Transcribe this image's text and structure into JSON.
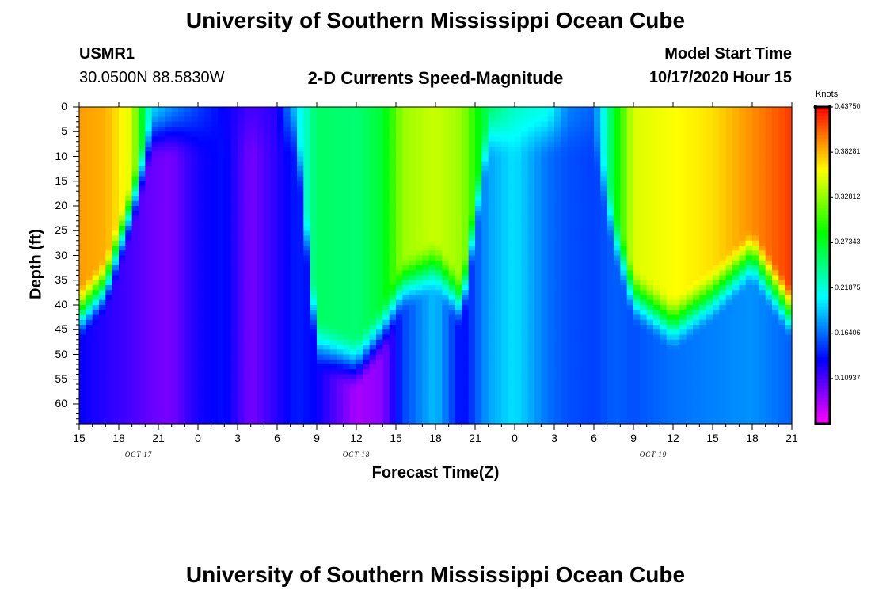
{
  "page": {
    "title": "University of Southern Mississippi Ocean Cube",
    "footer_title": "University of Southern Mississippi Ocean Cube"
  },
  "header": {
    "station_id": "USMR1",
    "station_coords": "30.0500N 88.5830W",
    "chart_title": "2-D Currents Speed-Magnitude",
    "model_start_label": "Model Start Time",
    "model_start_value": "10/17/2020 Hour 15"
  },
  "chart_data": {
    "type": "heatmap",
    "title": "2-D Currents Speed-Magnitude",
    "xlabel": "Forecast Time(Z)",
    "ylabel": "Depth (ft)",
    "y_range": [
      0,
      64
    ],
    "y_ticks": [
      0,
      5,
      10,
      15,
      20,
      25,
      30,
      35,
      40,
      45,
      50,
      55,
      60
    ],
    "x_range_hours": [
      0,
      54
    ],
    "x_tick_labels": [
      "15",
      "18",
      "21",
      "0",
      "3",
      "6",
      "9",
      "12",
      "15",
      "18",
      "21",
      "0",
      "3",
      "6",
      "9",
      "12",
      "15",
      "18",
      "21"
    ],
    "date_labels": [
      {
        "text": "OCT 17",
        "hour": 4.5
      },
      {
        "text": "OCT 18",
        "hour": 21
      },
      {
        "text": "OCT 19",
        "hour": 43.5
      }
    ],
    "colorbar": {
      "label": "Knots",
      "min": 0.0547,
      "max": 0.4375,
      "tick_labels": [
        "0.43750",
        "0.38281",
        "0.32812",
        "0.27343",
        "0.21875",
        "0.16406",
        "0.10937"
      ],
      "tick_values": [
        0.4375,
        0.38281,
        0.32812,
        0.27343,
        0.21875,
        0.16406,
        0.10937
      ]
    },
    "speed_profile": [
      {
        "hour": 0,
        "top": 0.39,
        "bottom": 0.13,
        "transition_depth": 42
      },
      {
        "hour": 2,
        "top": 0.385,
        "bottom": 0.12,
        "transition_depth": 36
      },
      {
        "hour": 4,
        "top": 0.35,
        "bottom": 0.11,
        "transition_depth": 20
      },
      {
        "hour": 5.5,
        "top": 0.2,
        "bottom": 0.1,
        "transition_depth": 5
      },
      {
        "hour": 7,
        "top": 0.175,
        "bottom": 0.095,
        "transition_depth": 5
      },
      {
        "hour": 9,
        "top": 0.15,
        "bottom": 0.125,
        "transition_depth": 5
      },
      {
        "hour": 11,
        "top": 0.13,
        "bottom": 0.135,
        "transition_depth": 5
      },
      {
        "hour": 13,
        "top": 0.11,
        "bottom": 0.095,
        "transition_depth": 5
      },
      {
        "hour": 15,
        "top": 0.12,
        "bottom": 0.12,
        "transition_depth": 5
      },
      {
        "hour": 16.5,
        "top": 0.2,
        "bottom": 0.14,
        "transition_depth": 5
      },
      {
        "hour": 18,
        "top": 0.255,
        "bottom": 0.13,
        "transition_depth": 48
      },
      {
        "hour": 21,
        "top": 0.25,
        "bottom": 0.08,
        "transition_depth": 52
      },
      {
        "hour": 23,
        "top": 0.27,
        "bottom": 0.09,
        "transition_depth": 45
      },
      {
        "hour": 24.5,
        "top": 0.33,
        "bottom": 0.15,
        "transition_depth": 36
      },
      {
        "hour": 27,
        "top": 0.345,
        "bottom": 0.19,
        "transition_depth": 32
      },
      {
        "hour": 29,
        "top": 0.33,
        "bottom": 0.13,
        "transition_depth": 40
      },
      {
        "hour": 31,
        "top": 0.255,
        "bottom": 0.18,
        "transition_depth": 5
      },
      {
        "hour": 33,
        "top": 0.225,
        "bottom": 0.2,
        "transition_depth": 5
      },
      {
        "hour": 35.5,
        "top": 0.215,
        "bottom": 0.165,
        "transition_depth": 5
      },
      {
        "hour": 37,
        "top": 0.17,
        "bottom": 0.155,
        "transition_depth": 5
      },
      {
        "hour": 39,
        "top": 0.16,
        "bottom": 0.15,
        "transition_depth": 5
      },
      {
        "hour": 40.5,
        "top": 0.27,
        "bottom": 0.16,
        "transition_depth": 25
      },
      {
        "hour": 42,
        "top": 0.35,
        "bottom": 0.155,
        "transition_depth": 38
      },
      {
        "hour": 45,
        "top": 0.36,
        "bottom": 0.165,
        "transition_depth": 44
      },
      {
        "hour": 48,
        "top": 0.37,
        "bottom": 0.17,
        "transition_depth": 38
      },
      {
        "hour": 51,
        "top": 0.395,
        "bottom": 0.175,
        "transition_depth": 30
      },
      {
        "hour": 54,
        "top": 0.42,
        "bottom": 0.16,
        "transition_depth": 42
      }
    ]
  }
}
